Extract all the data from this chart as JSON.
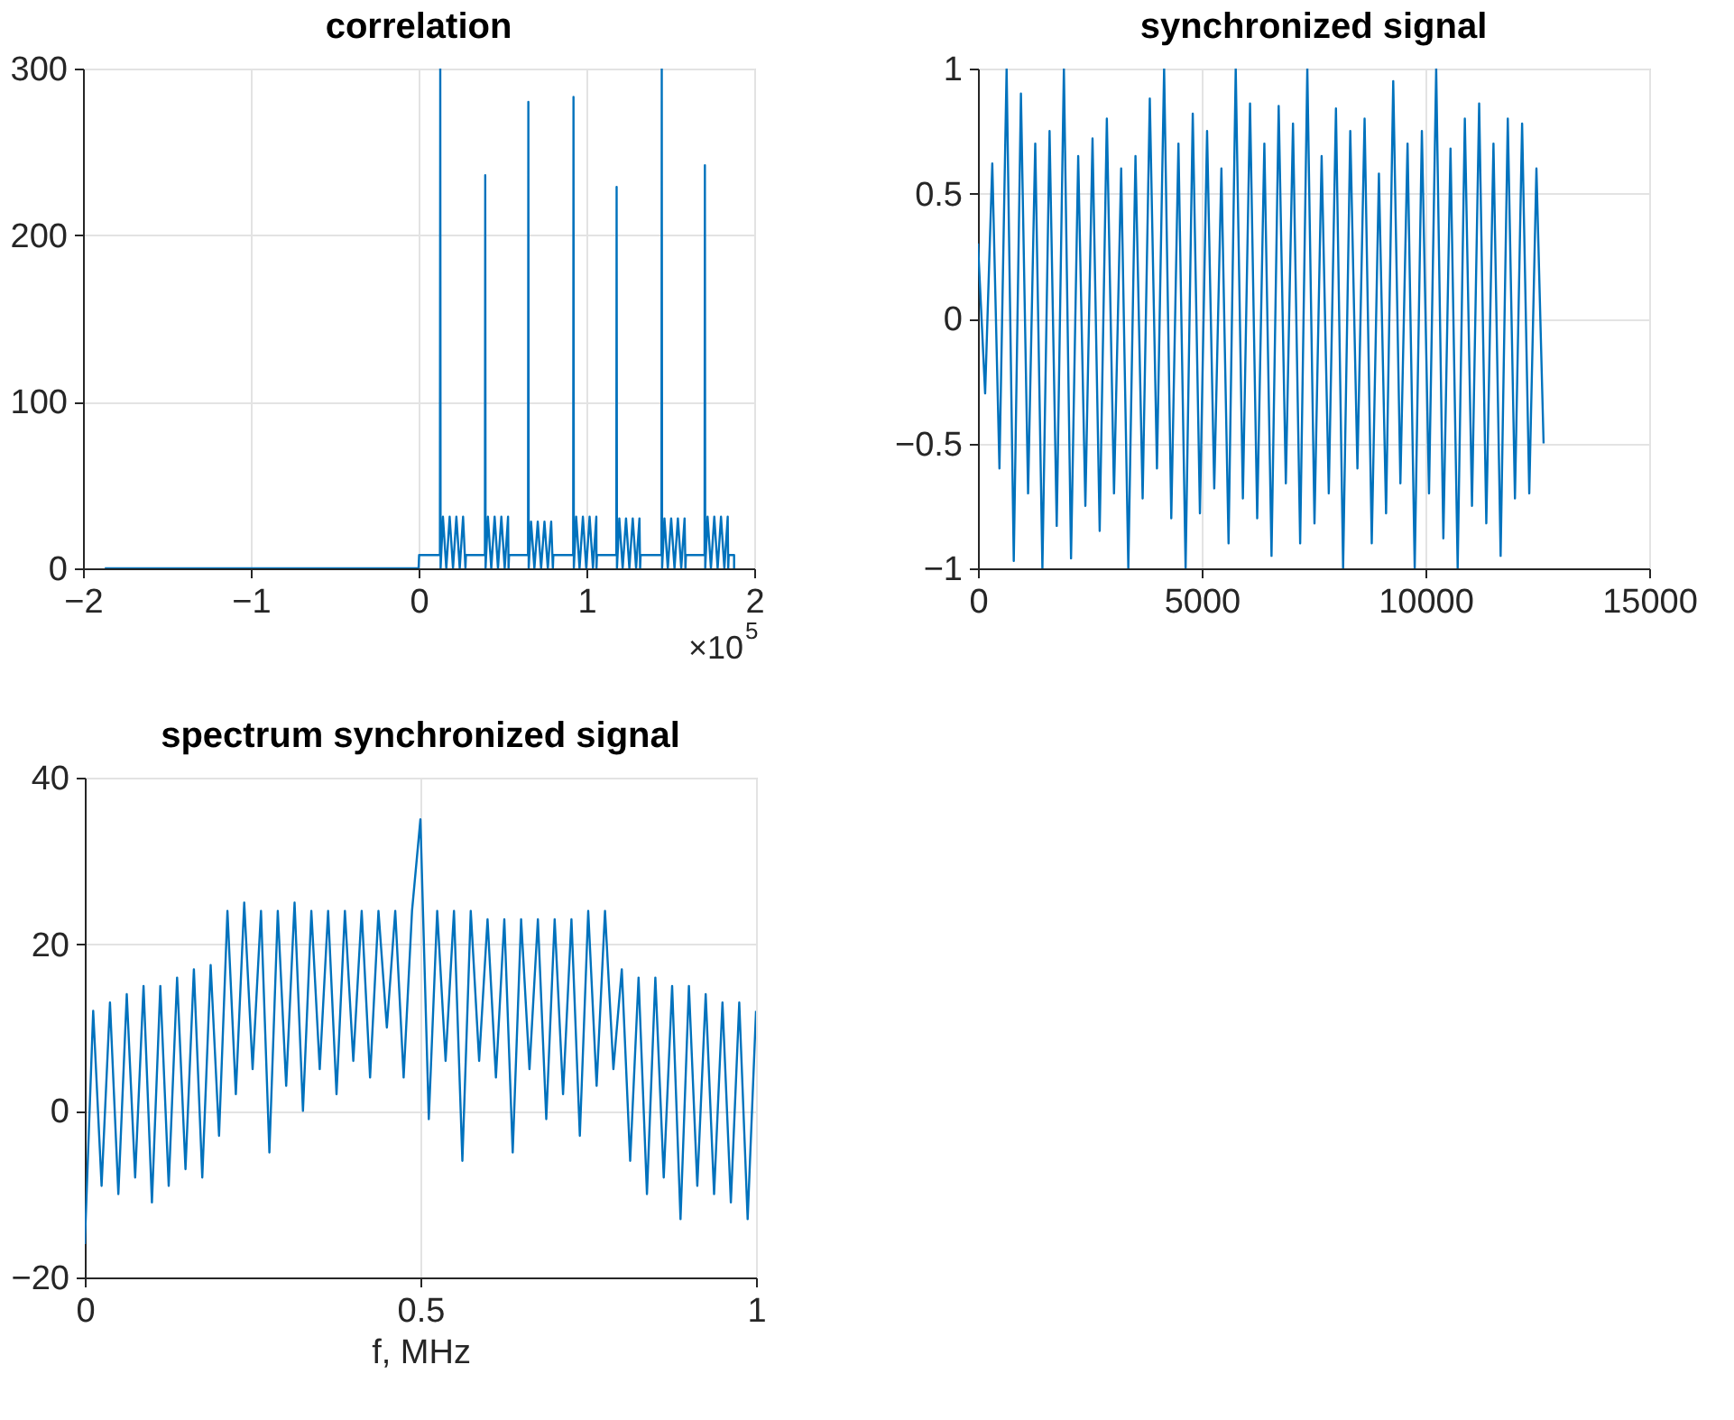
{
  "chart_data": [
    {
      "type": "line",
      "title": "correlation",
      "xlim": [
        -2,
        2
      ],
      "xticks": [
        -2,
        -1,
        0,
        1,
        2
      ],
      "ylim": [
        0,
        300
      ],
      "yticks": [
        0,
        100,
        200,
        300
      ],
      "grid": true,
      "annotations": [
        "×10$^{5}$"
      ],
      "x": [
        -1.87,
        0,
        0.003,
        0.127,
        0.129,
        0.131,
        0.145,
        0.165,
        0.185,
        0.205,
        0.225,
        0.245,
        0.265,
        0.279,
        0.282,
        0.395,
        0.397,
        0.399,
        0.413,
        0.433,
        0.453,
        0.473,
        0.493,
        0.513,
        0.533,
        0.536,
        0.539,
        0.652,
        0.654,
        0.656,
        0.67,
        0.69,
        0.71,
        0.73,
        0.75,
        0.77,
        0.79,
        0.8,
        0.803,
        0.921,
        0.923,
        0.925,
        0.939,
        0.959,
        0.979,
        0.999,
        1.019,
        1.039,
        1.059,
        1.06,
        1.063,
        1.178,
        1.18,
        1.182,
        1.196,
        1.216,
        1.236,
        1.256,
        1.276,
        1.296,
        1.316,
        1.32,
        1.323,
        1.447,
        1.449,
        1.451,
        1.465,
        1.485,
        1.505,
        1.525,
        1.545,
        1.565,
        1.585,
        1.59,
        1.593,
        1.704,
        1.706,
        1.708,
        1.722,
        1.742,
        1.762,
        1.782,
        1.802,
        1.822,
        1.842,
        1.845,
        1.848,
        1.88,
        1.88
      ],
      "series": [
        {
          "color": "#0072bd",
          "values": [
            0,
            0,
            8,
            8,
            300,
            0,
            31,
            0,
            31,
            0,
            31,
            0,
            31,
            0,
            8,
            8,
            236,
            0,
            31,
            0,
            31,
            0,
            31,
            0,
            31,
            0,
            8,
            8,
            280,
            0,
            28,
            0,
            28,
            0,
            28,
            0,
            28,
            0,
            8,
            8,
            283,
            0,
            31,
            0,
            31,
            0,
            31,
            0,
            31,
            0,
            8,
            8,
            229,
            0,
            30,
            0,
            30,
            0,
            30,
            0,
            30,
            0,
            8,
            8,
            300,
            0,
            30,
            0,
            30,
            0,
            30,
            0,
            30,
            0,
            8,
            8,
            242,
            0,
            31,
            0,
            31,
            0,
            31,
            0,
            31,
            0,
            8,
            8,
            0
          ]
        }
      ]
    },
    {
      "type": "line",
      "title": "synchronized signal",
      "xlim": [
        0,
        15000
      ],
      "xticks": [
        0,
        5000,
        10000,
        15000
      ],
      "ylim": [
        -1,
        1
      ],
      "yticks": [
        -1,
        -0.5,
        0,
        0.5,
        1
      ],
      "grid": true,
      "x": [
        0,
        160,
        320,
        480,
        640,
        800,
        960,
        1120,
        1280,
        1440,
        1600,
        1760,
        1920,
        2080,
        2240,
        2400,
        2560,
        2720,
        2880,
        3040,
        3200,
        3360,
        3520,
        3680,
        3840,
        4000,
        4160,
        4320,
        4480,
        4640,
        4800,
        4960,
        5120,
        5280,
        5440,
        5600,
        5760,
        5920,
        6080,
        6240,
        6400,
        6560,
        6720,
        6880,
        7040,
        7200,
        7360,
        7520,
        7680,
        7840,
        8000,
        8160,
        8320,
        8480,
        8640,
        8800,
        8960,
        9120,
        9280,
        9440,
        9600,
        9760,
        9920,
        10080,
        10240,
        10400,
        10560,
        10720,
        10880,
        11040,
        11200,
        11360,
        11520,
        11680,
        11840,
        12000,
        12160,
        12320,
        12480,
        12640
      ],
      "series": [
        {
          "color": "#0072bd",
          "values": [
            0.3,
            -0.3,
            0.62,
            -0.6,
            1,
            -0.97,
            0.9,
            -0.7,
            0.7,
            -1,
            0.75,
            -0.83,
            1,
            -0.96,
            0.65,
            -0.75,
            0.72,
            -0.85,
            0.8,
            -0.7,
            0.6,
            -1,
            0.65,
            -0.72,
            0.88,
            -0.6,
            1,
            -0.8,
            0.7,
            -1,
            0.82,
            -0.78,
            0.75,
            -0.68,
            0.6,
            -0.9,
            1,
            -0.72,
            0.86,
            -0.8,
            0.7,
            -0.95,
            0.85,
            -0.66,
            0.78,
            -0.9,
            1,
            -0.82,
            0.65,
            -0.7,
            0.84,
            -1,
            0.75,
            -0.6,
            0.8,
            -0.9,
            0.58,
            -0.78,
            0.95,
            -0.66,
            0.7,
            -1,
            0.75,
            -0.7,
            1,
            -0.88,
            0.68,
            -1,
            0.8,
            -0.75,
            0.86,
            -0.82,
            0.7,
            -0.95,
            0.8,
            -0.72,
            0.78,
            -0.7,
            0.6,
            -0.5
          ]
        }
      ]
    },
    {
      "type": "line",
      "title": "spectrum synchronized signal",
      "xlabel": "f, MHz",
      "xlim": [
        0,
        1
      ],
      "xticks": [
        0,
        0.5,
        1
      ],
      "ylim": [
        -20,
        40
      ],
      "yticks": [
        -20,
        0,
        20,
        40
      ],
      "grid": true,
      "x": [
        0,
        0.0125,
        0.025,
        0.0375,
        0.05,
        0.0625,
        0.075,
        0.0875,
        0.1,
        0.1125,
        0.125,
        0.1375,
        0.15,
        0.1625,
        0.175,
        0.1875,
        0.2,
        0.2125,
        0.225,
        0.2375,
        0.25,
        0.2625,
        0.275,
        0.2875,
        0.3,
        0.3125,
        0.325,
        0.3375,
        0.35,
        0.3625,
        0.375,
        0.3875,
        0.4,
        0.4125,
        0.425,
        0.4375,
        0.45,
        0.4625,
        0.475,
        0.4875,
        0.5,
        0.5125,
        0.525,
        0.5375,
        0.55,
        0.5625,
        0.575,
        0.5875,
        0.6,
        0.6125,
        0.625,
        0.6375,
        0.65,
        0.6625,
        0.675,
        0.6875,
        0.7,
        0.7125,
        0.725,
        0.7375,
        0.75,
        0.7625,
        0.775,
        0.7875,
        0.8,
        0.8125,
        0.825,
        0.8375,
        0.85,
        0.8625,
        0.875,
        0.8875,
        0.9,
        0.9125,
        0.925,
        0.9375,
        0.95,
        0.9625,
        0.975,
        0.9875,
        1
      ],
      "series": [
        {
          "color": "#0072bd",
          "values": [
            -16,
            12,
            -9,
            13,
            -10,
            14,
            -8,
            15,
            -11,
            15,
            -9,
            16,
            -7,
            17,
            -8,
            17.5,
            -3,
            24,
            2,
            25,
            5,
            24,
            -5,
            24,
            3,
            25,
            0,
            24,
            5,
            24,
            2,
            24,
            6,
            24,
            4,
            24,
            10,
            24,
            4,
            24,
            35,
            -1,
            24,
            6,
            24,
            -6,
            24,
            6,
            23,
            4,
            23,
            -5,
            23,
            5,
            23,
            -1,
            23,
            2,
            23,
            -3,
            24,
            3,
            24,
            5,
            17,
            -6,
            16,
            -10,
            16,
            -8,
            15,
            -13,
            15,
            -9,
            14,
            -10,
            13,
            -11,
            13,
            -13,
            12
          ]
        }
      ]
    }
  ]
}
